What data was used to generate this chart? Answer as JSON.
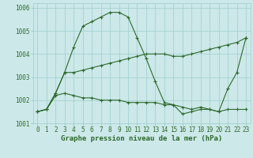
{
  "series": [
    {
      "x": [
        0,
        1,
        2,
        3,
        4,
        5,
        6,
        7,
        8,
        9,
        10,
        11,
        12,
        13,
        14,
        15,
        16,
        17,
        18,
        19,
        20,
        21,
        22,
        23
      ],
      "y": [
        1001.5,
        1001.6,
        1002.3,
        1003.2,
        1004.3,
        1005.2,
        1005.4,
        1005.6,
        1005.8,
        1005.8,
        1005.6,
        1004.7,
        1003.8,
        1002.8,
        1001.9,
        1001.8,
        1001.7,
        1001.6,
        1001.7,
        1001.6,
        1001.5,
        1002.5,
        1003.2,
        1004.7
      ]
    },
    {
      "x": [
        0,
        1,
        2,
        3,
        4,
        5,
        6,
        7,
        8,
        9,
        10,
        11,
        12,
        13,
        14,
        15,
        16,
        17,
        18,
        19,
        20,
        21,
        22,
        23
      ],
      "y": [
        1001.5,
        1001.6,
        1002.3,
        1003.2,
        1003.2,
        1003.3,
        1003.4,
        1003.5,
        1003.6,
        1003.7,
        1003.8,
        1003.9,
        1004.0,
        1004.0,
        1004.0,
        1003.9,
        1003.9,
        1004.0,
        1004.1,
        1004.2,
        1004.3,
        1004.4,
        1004.5,
        1004.7
      ]
    },
    {
      "x": [
        0,
        1,
        2,
        3,
        4,
        5,
        6,
        7,
        8,
        9,
        10,
        11,
        12,
        13,
        14,
        15,
        16,
        17,
        18,
        19,
        20,
        21,
        22,
        23
      ],
      "y": [
        1001.5,
        1001.6,
        1002.2,
        1002.3,
        1002.2,
        1002.1,
        1002.1,
        1002.0,
        1002.0,
        1002.0,
        1001.9,
        1001.9,
        1001.9,
        1001.9,
        1001.8,
        1001.8,
        1001.4,
        1001.5,
        1001.6,
        1001.6,
        1001.5,
        1001.6,
        1001.6,
        1001.6
      ]
    }
  ],
  "line_color": "#2d6a2d",
  "marker": "+",
  "markersize": 3,
  "linewidth": 0.8,
  "markeredgewidth": 0.8,
  "bg_color": "#cce8e8",
  "grid_color": "#9ecece",
  "xlabel": "Graphe pression niveau de la mer (hPa)",
  "xlim": [
    -0.5,
    23.5
  ],
  "ylim": [
    1001,
    1006.2
  ],
  "yticks": [
    1001,
    1002,
    1003,
    1004,
    1005,
    1006
  ],
  "xticks": [
    0,
    1,
    2,
    3,
    4,
    5,
    6,
    7,
    8,
    9,
    10,
    11,
    12,
    13,
    14,
    15,
    16,
    17,
    18,
    19,
    20,
    21,
    22,
    23
  ],
  "xlabel_fontsize": 6.5,
  "tick_fontsize": 5.5
}
